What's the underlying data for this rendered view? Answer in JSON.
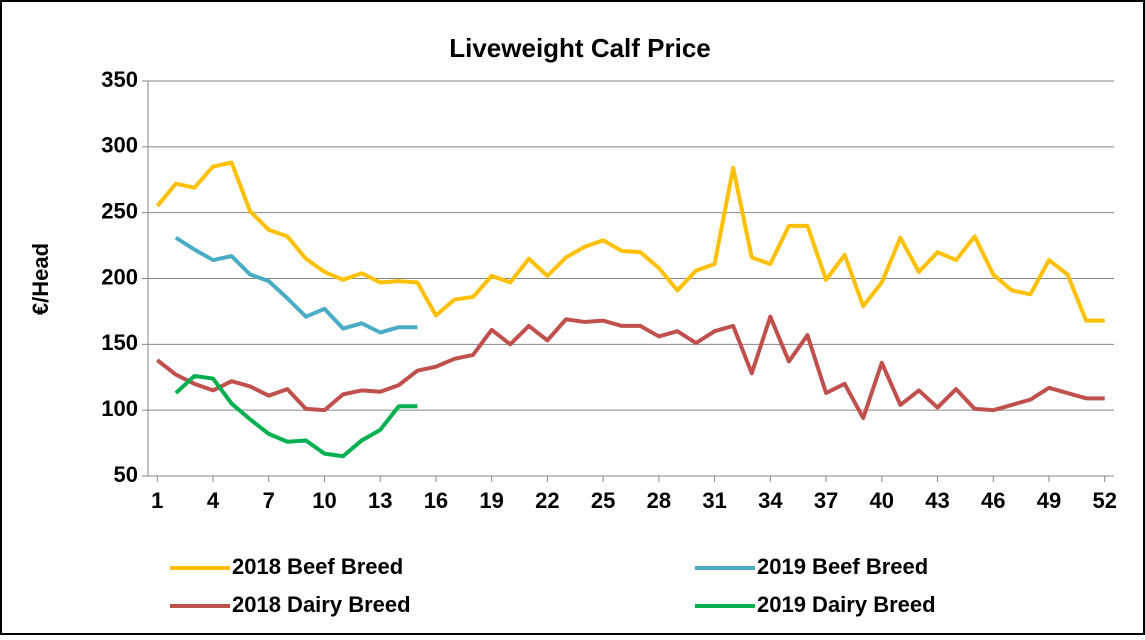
{
  "chart_data": {
    "type": "line",
    "title": "Liveweight Calf Price",
    "y_label": "€/Head",
    "x": [
      1,
      2,
      3,
      4,
      5,
      6,
      7,
      8,
      9,
      10,
      11,
      12,
      13,
      14,
      15,
      16,
      17,
      18,
      19,
      20,
      21,
      22,
      23,
      24,
      25,
      26,
      27,
      28,
      29,
      30,
      31,
      32,
      33,
      34,
      35,
      36,
      37,
      38,
      39,
      40,
      41,
      42,
      43,
      44,
      45,
      46,
      47,
      48,
      49,
      50,
      51,
      52
    ],
    "xlim": [
      0.5,
      52.5
    ],
    "xticks": [
      1,
      4,
      7,
      10,
      13,
      16,
      19,
      22,
      25,
      28,
      31,
      34,
      37,
      40,
      43,
      46,
      49,
      52
    ],
    "ylim": [
      50,
      350
    ],
    "yticks": [
      50,
      100,
      150,
      200,
      250,
      300,
      350
    ],
    "grid": true,
    "series": [
      {
        "name": "2018 Beef Breed",
        "color": "#ffc000",
        "values": [
          255,
          272,
          269,
          285,
          288,
          251,
          237,
          232,
          215,
          205,
          199,
          204,
          197,
          198,
          197,
          172,
          184,
          186,
          202,
          197,
          215,
          202,
          216,
          224,
          229,
          221,
          220,
          208,
          191,
          206,
          211,
          284,
          216,
          211,
          240,
          240,
          199,
          218,
          179,
          197,
          231,
          205,
          220,
          214,
          232,
          203,
          191,
          188,
          214,
          203,
          168,
          168
        ]
      },
      {
        "name": "2019 Beef Breed",
        "color": "#4bacc6",
        "values": [
          null,
          231,
          222,
          214,
          217,
          203,
          198,
          185,
          171,
          177,
          162,
          166,
          159,
          163,
          163,
          null,
          null,
          null,
          null,
          null,
          null,
          null,
          null,
          null,
          null,
          null,
          null,
          null,
          null,
          null,
          null,
          null,
          null,
          null,
          null,
          null,
          null,
          null,
          null,
          null,
          null,
          null,
          null,
          null,
          null,
          null,
          null,
          null,
          null,
          null,
          null,
          null
        ]
      },
      {
        "name": "2018 Dairy Breed",
        "color": "#c0504d",
        "values": [
          138,
          127,
          120,
          115,
          122,
          118,
          111,
          116,
          101,
          100,
          112,
          115,
          114,
          119,
          130,
          133,
          139,
          142,
          161,
          150,
          164,
          153,
          169,
          167,
          168,
          164,
          164,
          156,
          160,
          151,
          160,
          164,
          128,
          171,
          137,
          157,
          113,
          120,
          94,
          136,
          104,
          115,
          102,
          116,
          101,
          100,
          104,
          108,
          117,
          113,
          109,
          109
        ]
      },
      {
        "name": "2019 Dairy Breed",
        "color": "#00b050",
        "values": [
          null,
          113,
          126,
          124,
          105,
          93,
          82,
          76,
          77,
          67,
          65,
          77,
          85,
          103,
          103,
          null,
          null,
          null,
          null,
          null,
          null,
          null,
          null,
          null,
          null,
          null,
          null,
          null,
          null,
          null,
          null,
          null,
          null,
          null,
          null,
          null,
          null,
          null,
          null,
          null,
          null,
          null,
          null,
          null,
          null,
          null,
          null,
          null,
          null,
          null,
          null,
          null
        ]
      }
    ]
  }
}
